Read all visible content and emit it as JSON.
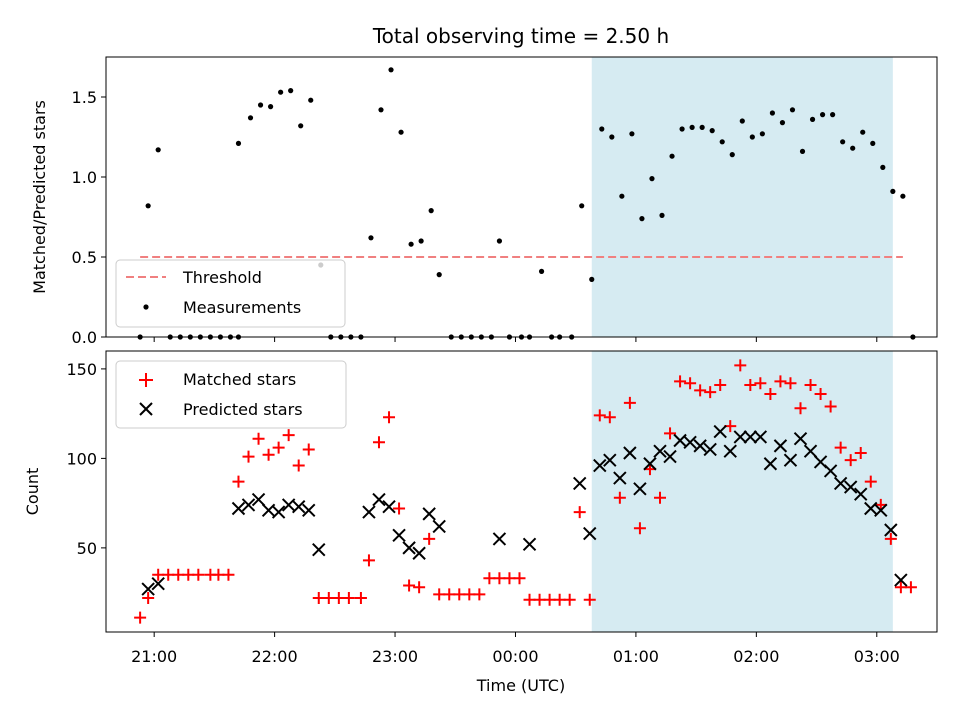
{
  "chart_data": {
    "type": "scatter",
    "title": "Total observing time = 2.50 h",
    "xlabel": "Time (UTC)",
    "x_ticks": [
      "21:00",
      "22:00",
      "23:00",
      "00:00",
      "01:00",
      "02:00",
      "03:00"
    ],
    "x_range": [
      "20:36",
      "03:30"
    ],
    "shaded_interval": [
      "00:38",
      "03:08"
    ],
    "shade_color": "#add8e6",
    "panels": [
      {
        "ylabel": "Matched/Predicted stars",
        "ylim": [
          0,
          1.75
        ],
        "y_ticks": [
          "0.0",
          "0.5",
          "1.0",
          "1.5"
        ],
        "legend": {
          "position": "lower-left"
        },
        "threshold": {
          "name": "Threshold",
          "value": 0.5,
          "color": "#f08080",
          "x_range": [
            "20:53",
            "03:13"
          ]
        },
        "series": [
          {
            "name": "Measurements",
            "marker": "dot",
            "color": "#000000",
            "points": [
              [
                "20:53",
                0.0
              ],
              [
                "20:57",
                0.82
              ],
              [
                "21:02",
                1.17
              ],
              [
                "21:08",
                0.0
              ],
              [
                "21:13",
                0.0
              ],
              [
                "21:18",
                0.0
              ],
              [
                "21:23",
                0.0
              ],
              [
                "21:28",
                0.0
              ],
              [
                "21:33",
                0.0
              ],
              [
                "21:38",
                0.0
              ],
              [
                "21:42",
                0.0
              ],
              [
                "21:42",
                1.21
              ],
              [
                "21:48",
                1.37
              ],
              [
                "21:53",
                1.45
              ],
              [
                "21:58",
                1.44
              ],
              [
                "22:03",
                1.53
              ],
              [
                "22:08",
                1.54
              ],
              [
                "22:13",
                1.32
              ],
              [
                "22:18",
                1.48
              ],
              [
                "22:23",
                0.45
              ],
              [
                "22:28",
                0.0
              ],
              [
                "22:33",
                0.0
              ],
              [
                "22:38",
                0.0
              ],
              [
                "22:43",
                0.0
              ],
              [
                "22:48",
                0.62
              ],
              [
                "22:53",
                1.42
              ],
              [
                "22:58",
                1.67
              ],
              [
                "23:03",
                1.28
              ],
              [
                "23:08",
                0.58
              ],
              [
                "23:13",
                0.6
              ],
              [
                "23:18",
                0.79
              ],
              [
                "23:22",
                0.39
              ],
              [
                "23:28",
                0.0
              ],
              [
                "23:33",
                0.0
              ],
              [
                "23:38",
                0.0
              ],
              [
                "23:43",
                0.0
              ],
              [
                "23:48",
                0.0
              ],
              [
                "23:52",
                0.6
              ],
              [
                "23:57",
                0.0
              ],
              [
                "00:03",
                0.0
              ],
              [
                "00:07",
                0.0
              ],
              [
                "00:13",
                0.41
              ],
              [
                "00:18",
                0.0
              ],
              [
                "00:22",
                0.0
              ],
              [
                "00:28",
                0.0
              ],
              [
                "00:33",
                0.82
              ],
              [
                "00:38",
                0.36
              ],
              [
                "00:43",
                1.3
              ],
              [
                "00:48",
                1.25
              ],
              [
                "00:53",
                0.88
              ],
              [
                "00:58",
                1.27
              ],
              [
                "01:03",
                0.74
              ],
              [
                "01:08",
                0.99
              ],
              [
                "01:13",
                0.76
              ],
              [
                "01:18",
                1.13
              ],
              [
                "01:23",
                1.3
              ],
              [
                "01:28",
                1.31
              ],
              [
                "01:33",
                1.31
              ],
              [
                "01:38",
                1.29
              ],
              [
                "01:43",
                1.22
              ],
              [
                "01:48",
                1.14
              ],
              [
                "01:53",
                1.35
              ],
              [
                "01:58",
                1.25
              ],
              [
                "02:03",
                1.27
              ],
              [
                "02:08",
                1.4
              ],
              [
                "02:13",
                1.34
              ],
              [
                "02:18",
                1.42
              ],
              [
                "02:23",
                1.16
              ],
              [
                "02:28",
                1.36
              ],
              [
                "02:33",
                1.39
              ],
              [
                "02:38",
                1.39
              ],
              [
                "02:43",
                1.22
              ],
              [
                "02:48",
                1.18
              ],
              [
                "02:53",
                1.28
              ],
              [
                "02:58",
                1.21
              ],
              [
                "03:03",
                1.06
              ],
              [
                "03:08",
                0.91
              ],
              [
                "03:13",
                0.88
              ],
              [
                "03:18",
                0.0
              ]
            ]
          }
        ]
      },
      {
        "ylabel": "Count",
        "ylim": [
          3,
          160
        ],
        "y_ticks": [
          "50",
          "100",
          "150"
        ],
        "legend": {
          "position": "upper-left"
        },
        "series": [
          {
            "name": "Matched stars",
            "marker": "plus",
            "color": "#ff0000",
            "points": [
              [
                "20:53",
                11
              ],
              [
                "20:57",
                22
              ],
              [
                "21:02",
                35
              ],
              [
                "21:07",
                35
              ],
              [
                "21:12",
                35
              ],
              [
                "21:17",
                35
              ],
              [
                "21:22",
                35
              ],
              [
                "21:28",
                35
              ],
              [
                "21:32",
                35
              ],
              [
                "21:37",
                35
              ],
              [
                "21:42",
                87
              ],
              [
                "21:47",
                101
              ],
              [
                "21:52",
                111
              ],
              [
                "21:57",
                102
              ],
              [
                "22:02",
                106
              ],
              [
                "22:07",
                113
              ],
              [
                "22:12",
                96
              ],
              [
                "22:17",
                105
              ],
              [
                "22:22",
                22
              ],
              [
                "22:27",
                22
              ],
              [
                "22:32",
                22
              ],
              [
                "22:37",
                22
              ],
              [
                "22:43",
                22
              ],
              [
                "22:47",
                43
              ],
              [
                "22:52",
                109
              ],
              [
                "22:57",
                123
              ],
              [
                "23:02",
                72
              ],
              [
                "23:07",
                29
              ],
              [
                "23:12",
                28
              ],
              [
                "23:17",
                55
              ],
              [
                "23:22",
                24
              ],
              [
                "23:27",
                24
              ],
              [
                "23:32",
                24
              ],
              [
                "23:37",
                24
              ],
              [
                "23:42",
                24
              ],
              [
                "23:47",
                33
              ],
              [
                "23:52",
                33
              ],
              [
                "23:57",
                33
              ],
              [
                "00:02",
                33
              ],
              [
                "00:07",
                21
              ],
              [
                "00:12",
                21
              ],
              [
                "00:17",
                21
              ],
              [
                "00:22",
                21
              ],
              [
                "00:27",
                21
              ],
              [
                "00:32",
                70
              ],
              [
                "00:37",
                21
              ],
              [
                "00:42",
                124
              ],
              [
                "00:47",
                123
              ],
              [
                "00:52",
                78
              ],
              [
                "00:57",
                131
              ],
              [
                "01:02",
                61
              ],
              [
                "01:07",
                94
              ],
              [
                "01:12",
                78
              ],
              [
                "01:17",
                114
              ],
              [
                "01:22",
                143
              ],
              [
                "01:27",
                142
              ],
              [
                "01:32",
                138
              ],
              [
                "01:37",
                137
              ],
              [
                "01:42",
                141
              ],
              [
                "01:47",
                118
              ],
              [
                "01:52",
                152
              ],
              [
                "01:57",
                141
              ],
              [
                "02:02",
                142
              ],
              [
                "02:07",
                136
              ],
              [
                "02:12",
                143
              ],
              [
                "02:17",
                142
              ],
              [
                "02:22",
                128
              ],
              [
                "02:27",
                141
              ],
              [
                "02:32",
                136
              ],
              [
                "02:37",
                129
              ],
              [
                "02:42",
                106
              ],
              [
                "02:47",
                99
              ],
              [
                "02:52",
                103
              ],
              [
                "02:57",
                87
              ],
              [
                "03:02",
                74
              ],
              [
                "03:07",
                55
              ],
              [
                "03:12",
                28
              ],
              [
                "03:17",
                28
              ]
            ]
          },
          {
            "name": "Predicted stars",
            "marker": "x",
            "color": "#000000",
            "points": [
              [
                "20:57",
                27
              ],
              [
                "21:02",
                30
              ],
              [
                "21:42",
                72
              ],
              [
                "21:47",
                74
              ],
              [
                "21:52",
                77
              ],
              [
                "21:57",
                71
              ],
              [
                "22:02",
                70
              ],
              [
                "22:07",
                74
              ],
              [
                "22:12",
                73
              ],
              [
                "22:17",
                71
              ],
              [
                "22:22",
                49
              ],
              [
                "22:47",
                70
              ],
              [
                "22:52",
                77
              ],
              [
                "22:57",
                73
              ],
              [
                "23:02",
                57
              ],
              [
                "23:07",
                50
              ],
              [
                "23:12",
                47
              ],
              [
                "23:17",
                69
              ],
              [
                "23:22",
                62
              ],
              [
                "23:52",
                55
              ],
              [
                "00:07",
                52
              ],
              [
                "00:32",
                86
              ],
              [
                "00:37",
                58
              ],
              [
                "00:42",
                96
              ],
              [
                "00:47",
                99
              ],
              [
                "00:52",
                89
              ],
              [
                "00:57",
                103
              ],
              [
                "01:02",
                83
              ],
              [
                "01:07",
                97
              ],
              [
                "01:12",
                104
              ],
              [
                "01:17",
                101
              ],
              [
                "01:22",
                110
              ],
              [
                "01:27",
                109
              ],
              [
                "01:32",
                107
              ],
              [
                "01:37",
                105
              ],
              [
                "01:42",
                115
              ],
              [
                "01:47",
                104
              ],
              [
                "01:52",
                112
              ],
              [
                "01:57",
                112
              ],
              [
                "02:02",
                112
              ],
              [
                "02:07",
                97
              ],
              [
                "02:12",
                107
              ],
              [
                "02:17",
                99
              ],
              [
                "02:22",
                111
              ],
              [
                "02:27",
                104
              ],
              [
                "02:32",
                98
              ],
              [
                "02:37",
                93
              ],
              [
                "02:42",
                86
              ],
              [
                "02:47",
                84
              ],
              [
                "02:52",
                80
              ],
              [
                "02:57",
                72
              ],
              [
                "03:02",
                71
              ],
              [
                "03:07",
                60
              ],
              [
                "03:12",
                32
              ]
            ]
          }
        ]
      }
    ]
  }
}
